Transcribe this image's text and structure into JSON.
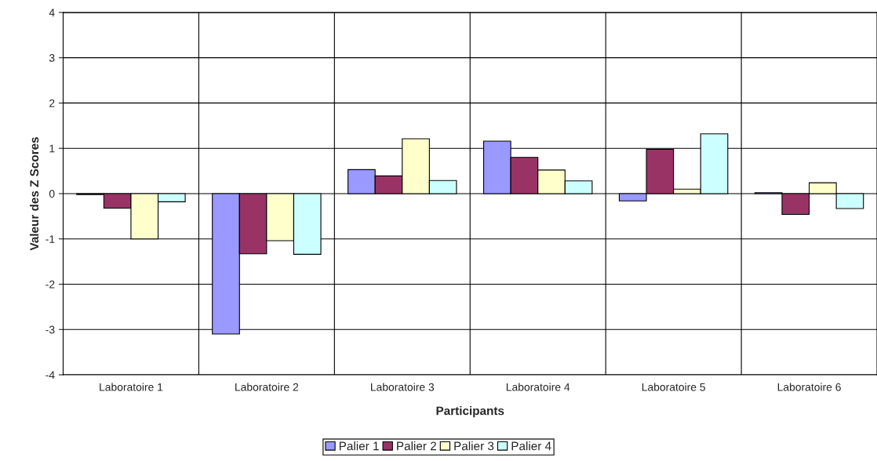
{
  "chart_data": {
    "type": "bar",
    "xlabel": "Participants",
    "ylabel": "Valeur des Z Scores",
    "categories": [
      "Laboratoire 1",
      "Laboratoire 2",
      "Laboratoire 3",
      "Laboratoire 4",
      "Laboratoire 5",
      "Laboratoire 6"
    ],
    "series": [
      {
        "name": "Palier 1",
        "color": "#9999ff",
        "values": [
          -0.02,
          -3.1,
          0.53,
          1.16,
          -0.16,
          0.02
        ]
      },
      {
        "name": "Palier 2",
        "color": "#993366",
        "values": [
          -0.32,
          -1.33,
          0.39,
          0.8,
          0.98,
          -0.46
        ]
      },
      {
        "name": "Palier 3",
        "color": "#ffffcc",
        "values": [
          -1.0,
          -1.04,
          1.21,
          0.52,
          0.1,
          0.24
        ]
      },
      {
        "name": "Palier 4",
        "color": "#ccffff",
        "values": [
          -0.18,
          -1.34,
          0.29,
          0.28,
          1.32,
          -0.33
        ]
      }
    ],
    "ylim": [
      -4,
      4
    ],
    "yticks": [
      -4,
      -3,
      -2,
      -1,
      0,
      1,
      2,
      3,
      4
    ],
    "grid": true,
    "legend": "bottom"
  }
}
